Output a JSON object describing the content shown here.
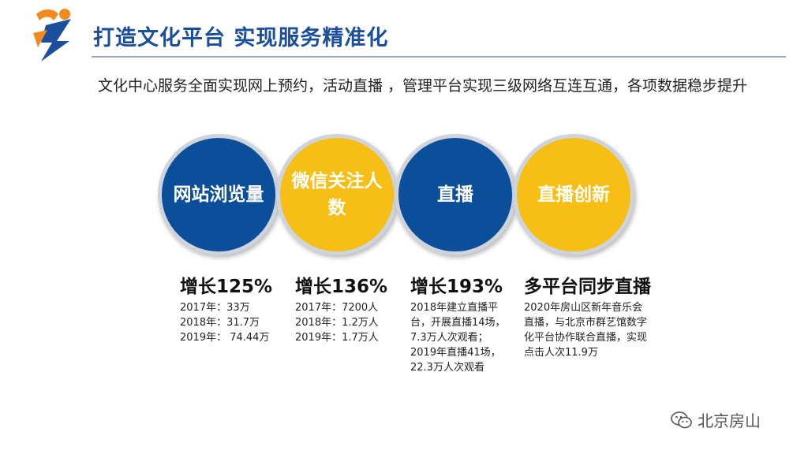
{
  "header": {
    "title": "打造文化平台 实现服务精准化"
  },
  "intro": {
    "text": "文化中心服务全面实现网上预约，活动直播 ，管理平台实现三级网络互连互通，各项数据稳步提升"
  },
  "circles": [
    {
      "label": "网站浏览量",
      "color": "#0b4f9a"
    },
    {
      "label": "微信关注人数",
      "color": "#f7be16"
    },
    {
      "label": "直播",
      "color": "#0b4f9a"
    },
    {
      "label": "直播创新",
      "color": "#f7be16"
    }
  ],
  "stats": [
    {
      "headline": "增长125%",
      "lines": [
        "2017年：33万",
        "2018年：31.7万",
        "2019年： 74.44万"
      ]
    },
    {
      "headline": "增长136%",
      "lines": [
        "2017年：7200人",
        "2018年：1.2万人",
        "2019年：1.7万人"
      ]
    },
    {
      "headline": "增长193%",
      "lines": [
        "2018年建立直播平",
        "台，开展直播14场，",
        "7.3万人次观看；",
        "2019年直播41场，",
        "22.3万人次观看"
      ]
    },
    {
      "headline": "多平台同步直播",
      "lines": [
        "2020年房山区新年音乐会",
        "直播，与北京市群艺馆数字",
        "化平台协作联合直播，实现",
        "点击人次11.9万"
      ]
    }
  ],
  "watermark": {
    "text": "北京房山",
    "icon": "wechat-icon"
  },
  "colors": {
    "title": "#1b4f9c",
    "blue": "#0b4f9a",
    "yellow": "#f7be16",
    "logo_orange": "#f28a1f"
  }
}
